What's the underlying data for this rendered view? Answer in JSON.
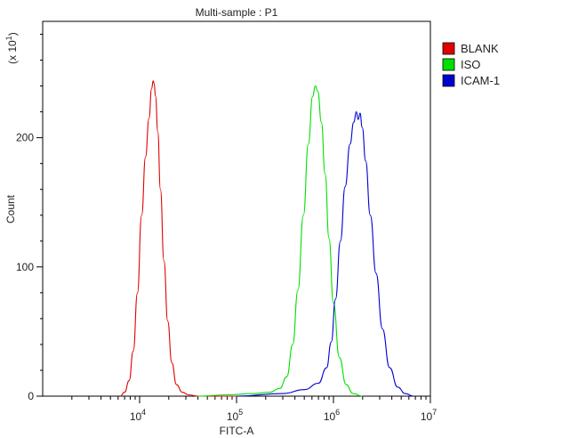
{
  "chart_data": {
    "type": "line",
    "title": "Multi-sample : P1",
    "xlabel": "FITC-A",
    "ylabel": "Count",
    "y_multiplier_label": "(x 10",
    "y_multiplier_exp": "1",
    "xscale": "log",
    "xlim": [
      1000,
      10000000
    ],
    "ylim": [
      0,
      290
    ],
    "x_ticks": [
      {
        "base": "10",
        "exp": "4",
        "value": 10000
      },
      {
        "base": "10",
        "exp": "5",
        "value": 100000
      },
      {
        "base": "10",
        "exp": "6",
        "value": 1000000
      },
      {
        "base": "10",
        "exp": "7",
        "value": 10000000
      }
    ],
    "y_ticks": [
      {
        "label": "0",
        "value": 0
      },
      {
        "label": "100",
        "value": 100
      },
      {
        "label": "200",
        "value": 200
      }
    ],
    "legend_position": "top-right",
    "series": [
      {
        "name": "BLANK",
        "color": "#e00000",
        "x": [
          6300,
          7000,
          7800,
          8600,
          9500,
          10500,
          11500,
          12500,
          13300,
          13800,
          14100,
          14600,
          15400,
          16400,
          17800,
          19500,
          21500,
          24000,
          27500,
          32000,
          40000,
          60000,
          100000
        ],
        "y": [
          0,
          3,
          12,
          35,
          80,
          140,
          185,
          215,
          238,
          244,
          242,
          232,
          205,
          160,
          105,
          58,
          26,
          9,
          3,
          1,
          0,
          0,
          0
        ]
      },
      {
        "name": "ISO",
        "color": "#00e000",
        "x": [
          40000,
          80000,
          150000,
          220000,
          280000,
          330000,
          380000,
          430000,
          490000,
          550000,
          610000,
          650000,
          690000,
          750000,
          820000,
          900000,
          1000000,
          1150000,
          1350000,
          1600000,
          2000000
        ],
        "y": [
          0,
          1,
          2,
          3,
          6,
          15,
          40,
          82,
          140,
          195,
          232,
          240,
          236,
          212,
          172,
          122,
          72,
          30,
          9,
          2,
          0
        ]
      },
      {
        "name": "ICAM-1",
        "color": "#0000d0",
        "x": [
          100000,
          300000,
          500000,
          700000,
          850000,
          950000,
          1050000,
          1180000,
          1320000,
          1480000,
          1620000,
          1720000,
          1800000,
          1880000,
          1980000,
          2150000,
          2400000,
          2750000,
          3200000,
          3800000,
          4600000,
          5500000,
          6700000
        ],
        "y": [
          0,
          2,
          5,
          10,
          22,
          42,
          75,
          120,
          162,
          195,
          212,
          220,
          214,
          219,
          208,
          182,
          140,
          95,
          52,
          22,
          7,
          2,
          0
        ]
      }
    ]
  }
}
